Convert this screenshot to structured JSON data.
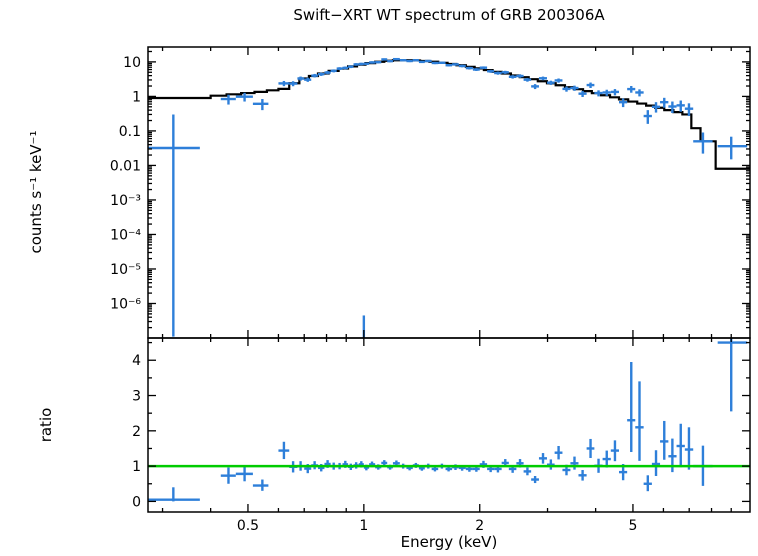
{
  "chart_data": {
    "type": "scatter",
    "title": "Swift−XRT WT spectrum of GRB 200306A",
    "xlabel": "Energy (keV)",
    "xscale": "log",
    "xlim": [
      0.275,
      10.07
    ],
    "legend": "none",
    "grid": "off",
    "colors": {
      "data": "#2e7fd9",
      "model": "#000000",
      "ratio_line": "#00cc00",
      "frame": "#000000"
    },
    "x_ticks": [
      {
        "v": 0.5,
        "label": "0.5"
      },
      {
        "v": 1,
        "label": "1"
      },
      {
        "v": 2,
        "label": "2"
      },
      {
        "v": 5,
        "label": "5"
      }
    ],
    "x_minor": [
      0.3,
      0.4,
      0.6,
      0.7,
      0.8,
      0.9,
      3,
      4,
      6,
      7,
      8,
      9
    ],
    "top": {
      "ylabel": "counts s⁻¹ keV⁻¹",
      "yscale": "log",
      "ylim": [
        1e-07,
        27
      ],
      "yticks": [
        {
          "v": 10,
          "label": "10"
        },
        {
          "v": 1,
          "label": "1"
        },
        {
          "v": 0.1,
          "label": "0.1"
        },
        {
          "v": 0.01,
          "label": "0.01"
        },
        {
          "v": 0.001,
          "label": "10⁻³"
        },
        {
          "v": 0.0001,
          "label": "10⁻⁴"
        },
        {
          "v": 1e-05,
          "label": "10⁻⁵"
        },
        {
          "v": 1e-06,
          "label": "10⁻⁶"
        }
      ],
      "model_step": {
        "edges": [
          0.275,
          0.4,
          0.44,
          0.48,
          0.52,
          0.56,
          0.6,
          0.64,
          0.68,
          0.72,
          0.76,
          0.81,
          0.86,
          0.91,
          0.96,
          1.01,
          1.07,
          1.13,
          1.19,
          1.26,
          1.33,
          1.4,
          1.48,
          1.56,
          1.65,
          1.74,
          1.84,
          1.94,
          2.05,
          2.16,
          2.28,
          2.41,
          2.54,
          2.68,
          2.83,
          2.99,
          3.15,
          3.33,
          3.51,
          3.71,
          3.91,
          4.13,
          4.36,
          4.6,
          4.86,
          5.13,
          5.41,
          5.71,
          6.03,
          6.37,
          6.72,
          7.09,
          7.49,
          8.2,
          10.1
        ],
        "values": [
          0.9,
          1.05,
          1.15,
          1.25,
          1.35,
          1.5,
          1.65,
          2.4,
          3.3,
          3.9,
          4.6,
          5.5,
          6.4,
          7.4,
          8.3,
          9.2,
          10.1,
          10.8,
          11.15,
          11.2,
          11.0,
          10.6,
          10.1,
          9.4,
          8.7,
          8.0,
          7.2,
          6.5,
          5.8,
          5.15,
          4.6,
          4.05,
          3.6,
          3.15,
          2.75,
          2.4,
          2.1,
          1.85,
          1.62,
          1.42,
          1.24,
          1.08,
          0.94,
          0.82,
          0.71,
          0.62,
          0.54,
          0.47,
          0.4,
          0.35,
          0.3,
          0.12,
          0.05,
          0.008
        ]
      },
      "points": [
        [
          0.32,
          0.275,
          0.375,
          0.032,
          1.1e-07,
          0.3
        ],
        [
          0.445,
          0.425,
          0.465,
          0.84,
          0.58,
          1.12
        ],
        [
          0.49,
          0.465,
          0.515,
          0.98,
          0.71,
          1.27
        ],
        [
          0.545,
          0.515,
          0.565,
          0.61,
          0.4,
          0.84
        ],
        [
          0.62,
          0.6,
          0.64,
          2.38,
          1.98,
          2.8
        ],
        [
          0.655,
          0.64,
          0.672,
          2.35,
          1.97,
          2.75
        ],
        [
          0.685,
          0.672,
          0.7,
          3.3,
          2.86,
          3.76
        ],
        [
          0.715,
          0.7,
          0.73,
          3.05,
          2.64,
          3.48
        ],
        [
          0.745,
          0.73,
          0.76,
          4.0,
          3.54,
          4.48
        ],
        [
          0.775,
          0.76,
          0.79,
          4.4,
          3.92,
          4.9
        ],
        [
          0.805,
          0.79,
          0.82,
          4.9,
          4.39,
          5.43
        ],
        [
          0.835,
          0.82,
          0.85,
          5.5,
          4.96,
          6.06
        ],
        [
          0.865,
          0.85,
          0.88,
          6.4,
          5.81,
          7.01
        ],
        [
          0.895,
          0.88,
          0.91,
          6.7,
          6.09,
          7.33
        ],
        [
          0.925,
          0.91,
          0.94,
          7.25,
          6.61,
          7.91
        ],
        [
          0.955,
          0.94,
          0.97,
          8.45,
          7.75,
          9.17
        ],
        [
          0.985,
          0.97,
          1.0,
          8.7,
          7.99,
          9.43
        ],
        [
          1.0,
          0.995,
          1.005,
          1.5e-07,
          1e-08,
          4.5e-07
        ],
        [
          1.015,
          1.0,
          1.032,
          8.85,
          8.13,
          9.59
        ],
        [
          1.05,
          1.032,
          1.07,
          9.65,
          8.9,
          10.4
        ],
        [
          1.09,
          1.07,
          1.11,
          9.8,
          9.05,
          10.6
        ],
        [
          1.13,
          1.11,
          1.15,
          11.8,
          11.0,
          12.6
        ],
        [
          1.17,
          1.15,
          1.19,
          10.5,
          9.75,
          11.3
        ],
        [
          1.215,
          1.19,
          1.24,
          12.0,
          11.2,
          12.8
        ],
        [
          1.265,
          1.24,
          1.29,
          11.2,
          10.4,
          12.0
        ],
        [
          1.315,
          1.29,
          1.34,
          10.6,
          9.85,
          11.4
        ],
        [
          1.365,
          1.34,
          1.39,
          11.2,
          10.4,
          12.0
        ],
        [
          1.415,
          1.39,
          1.44,
          10.0,
          9.3,
          10.7
        ],
        [
          1.47,
          1.44,
          1.5,
          10.6,
          9.85,
          11.4
        ],
        [
          1.53,
          1.5,
          1.56,
          9.3,
          8.6,
          10.0
        ],
        [
          1.595,
          1.56,
          1.63,
          9.4,
          8.7,
          10.1
        ],
        [
          1.66,
          1.63,
          1.695,
          8.0,
          7.35,
          8.65
        ],
        [
          1.73,
          1.695,
          1.765,
          8.45,
          7.8,
          9.1
        ],
        [
          1.8,
          1.765,
          1.84,
          7.6,
          6.95,
          8.25
        ],
        [
          1.88,
          1.84,
          1.92,
          6.6,
          6.0,
          7.2
        ],
        [
          1.96,
          1.92,
          2.0,
          6.0,
          5.45,
          6.55
        ],
        [
          2.045,
          2.0,
          2.09,
          6.8,
          6.2,
          7.4
        ],
        [
          2.135,
          2.09,
          2.18,
          5.35,
          4.82,
          5.88
        ],
        [
          2.23,
          2.18,
          2.28,
          4.75,
          4.25,
          5.25
        ],
        [
          2.33,
          2.28,
          2.38,
          5.0,
          4.48,
          5.52
        ],
        [
          2.435,
          2.38,
          2.49,
          3.7,
          3.28,
          4.12
        ],
        [
          2.545,
          2.49,
          2.6,
          3.9,
          3.46,
          4.34
        ],
        [
          2.66,
          2.6,
          2.72,
          3.05,
          2.67,
          3.43
        ],
        [
          2.785,
          2.72,
          2.85,
          1.95,
          1.63,
          2.27
        ],
        [
          2.92,
          2.85,
          2.99,
          3.35,
          2.95,
          3.75
        ],
        [
          3.06,
          2.99,
          3.13,
          2.5,
          2.15,
          2.85
        ],
        [
          3.205,
          3.13,
          3.28,
          2.9,
          2.5,
          3.3
        ],
        [
          3.36,
          3.28,
          3.44,
          1.65,
          1.37,
          1.93
        ],
        [
          3.525,
          3.44,
          3.61,
          1.75,
          1.45,
          2.05
        ],
        [
          3.7,
          3.61,
          3.79,
          1.2,
          0.96,
          1.44
        ],
        [
          3.88,
          3.79,
          3.97,
          2.13,
          1.75,
          2.52
        ],
        [
          4.07,
          3.97,
          4.17,
          1.25,
          1.0,
          1.5
        ],
        [
          4.275,
          4.17,
          4.38,
          1.3,
          1.04,
          1.56
        ],
        [
          4.49,
          4.38,
          4.6,
          1.35,
          1.07,
          1.63
        ],
        [
          4.715,
          4.6,
          4.83,
          0.68,
          0.49,
          0.87
        ],
        [
          4.95,
          4.83,
          5.07,
          1.63,
          1.28,
          2.0
        ],
        [
          5.2,
          5.07,
          5.33,
          1.3,
          1.0,
          1.6
        ],
        [
          5.465,
          5.33,
          5.6,
          0.27,
          0.16,
          0.4
        ],
        [
          5.74,
          5.6,
          5.88,
          0.5,
          0.34,
          0.68
        ],
        [
          6.03,
          5.88,
          6.18,
          0.68,
          0.47,
          0.91
        ],
        [
          6.33,
          6.18,
          6.49,
          0.51,
          0.33,
          0.71
        ],
        [
          6.655,
          6.49,
          6.82,
          0.55,
          0.36,
          0.76
        ],
        [
          6.99,
          6.82,
          7.17,
          0.44,
          0.27,
          0.63
        ],
        [
          7.6,
          7.17,
          8.05,
          0.05,
          0.022,
          0.09
        ],
        [
          9.0,
          8.3,
          9.9,
          0.036,
          0.015,
          0.068
        ]
      ]
    },
    "bottom": {
      "ylabel": "ratio",
      "yscale": "linear",
      "ylim": [
        -0.3,
        4.63
      ],
      "reference_line": 1,
      "yticks": [
        {
          "v": 0,
          "label": "0"
        },
        {
          "v": 1,
          "label": "1"
        },
        {
          "v": 2,
          "label": "2"
        },
        {
          "v": 3,
          "label": "3"
        },
        {
          "v": 4,
          "label": "4"
        }
      ],
      "yminor": [
        0.5,
        1.5,
        2.5,
        3.5,
        4.5
      ],
      "points": [
        [
          0.32,
          0.275,
          0.375,
          0.05,
          0.0,
          0.4
        ],
        [
          0.445,
          0.425,
          0.465,
          0.73,
          0.5,
          0.96
        ],
        [
          0.49,
          0.465,
          0.515,
          0.78,
          0.57,
          0.99
        ],
        [
          0.545,
          0.515,
          0.565,
          0.45,
          0.3,
          0.62
        ],
        [
          0.62,
          0.6,
          0.64,
          1.44,
          1.2,
          1.69
        ],
        [
          0.655,
          0.64,
          0.672,
          0.98,
          0.82,
          1.14
        ],
        [
          0.685,
          0.672,
          0.7,
          1.0,
          0.87,
          1.14
        ],
        [
          0.715,
          0.7,
          0.73,
          0.93,
          0.8,
          1.06
        ],
        [
          0.745,
          0.73,
          0.76,
          1.02,
          0.91,
          1.14
        ],
        [
          0.775,
          0.76,
          0.79,
          0.95,
          0.85,
          1.06
        ],
        [
          0.805,
          0.79,
          0.82,
          1.06,
          0.95,
          1.17
        ],
        [
          0.835,
          0.82,
          0.85,
          1.0,
          0.9,
          1.1
        ],
        [
          0.865,
          0.85,
          0.88,
          1.0,
          0.91,
          1.09
        ],
        [
          0.895,
          0.88,
          0.91,
          1.05,
          0.95,
          1.15
        ],
        [
          0.925,
          0.91,
          0.94,
          0.98,
          0.89,
          1.07
        ],
        [
          0.955,
          0.94,
          0.97,
          1.02,
          0.93,
          1.11
        ],
        [
          0.985,
          0.97,
          1.0,
          1.05,
          0.96,
          1.14
        ],
        [
          1.015,
          1.0,
          1.032,
          0.96,
          0.88,
          1.04
        ],
        [
          1.05,
          1.032,
          1.07,
          1.05,
          0.97,
          1.13
        ],
        [
          1.09,
          1.07,
          1.11,
          0.97,
          0.9,
          1.05
        ],
        [
          1.13,
          1.11,
          1.15,
          1.09,
          1.01,
          1.17
        ],
        [
          1.17,
          1.15,
          1.19,
          0.97,
          0.9,
          1.04
        ],
        [
          1.215,
          1.19,
          1.24,
          1.08,
          1.0,
          1.16
        ],
        [
          1.265,
          1.24,
          1.29,
          1.0,
          0.93,
          1.07
        ],
        [
          1.315,
          1.29,
          1.34,
          0.95,
          0.88,
          1.02
        ],
        [
          1.365,
          1.34,
          1.39,
          1.02,
          0.95,
          1.09
        ],
        [
          1.415,
          1.39,
          1.44,
          0.94,
          0.87,
          1.01
        ],
        [
          1.47,
          1.44,
          1.5,
          1.0,
          0.93,
          1.07
        ],
        [
          1.53,
          1.5,
          1.56,
          0.92,
          0.85,
          0.99
        ],
        [
          1.595,
          1.56,
          1.63,
          1.0,
          0.93,
          1.07
        ],
        [
          1.66,
          1.63,
          1.695,
          0.92,
          0.85,
          0.99
        ],
        [
          1.73,
          1.695,
          1.765,
          0.97,
          0.89,
          1.05
        ],
        [
          1.8,
          1.765,
          1.84,
          0.95,
          0.87,
          1.03
        ],
        [
          1.88,
          1.84,
          1.92,
          0.92,
          0.84,
          1.0
        ],
        [
          1.96,
          1.92,
          2.0,
          0.92,
          0.84,
          1.01
        ],
        [
          2.045,
          2.0,
          2.09,
          1.05,
          0.95,
          1.15
        ],
        [
          2.135,
          2.09,
          2.18,
          0.92,
          0.83,
          1.01
        ],
        [
          2.23,
          2.18,
          2.28,
          0.92,
          0.82,
          1.02
        ],
        [
          2.33,
          2.28,
          2.38,
          1.09,
          0.98,
          1.2
        ],
        [
          2.435,
          2.38,
          2.49,
          0.92,
          0.81,
          1.03
        ],
        [
          2.545,
          2.49,
          2.6,
          1.08,
          0.96,
          1.2
        ],
        [
          2.66,
          2.6,
          2.72,
          0.85,
          0.74,
          0.96
        ],
        [
          2.785,
          2.72,
          2.85,
          0.62,
          0.52,
          0.72
        ],
        [
          2.92,
          2.85,
          2.99,
          1.22,
          1.07,
          1.37
        ],
        [
          3.06,
          2.99,
          3.13,
          1.04,
          0.9,
          1.19
        ],
        [
          3.205,
          3.13,
          3.28,
          1.38,
          1.19,
          1.57
        ],
        [
          3.36,
          3.28,
          3.44,
          0.89,
          0.74,
          1.04
        ],
        [
          3.525,
          3.44,
          3.61,
          1.08,
          0.9,
          1.27
        ],
        [
          3.7,
          3.61,
          3.79,
          0.74,
          0.59,
          0.89
        ],
        [
          3.88,
          3.79,
          3.97,
          1.5,
          1.23,
          1.77
        ],
        [
          4.07,
          3.97,
          4.17,
          1.01,
          0.81,
          1.21
        ],
        [
          4.275,
          4.17,
          4.38,
          1.2,
          0.96,
          1.44
        ],
        [
          4.49,
          4.38,
          4.6,
          1.44,
          1.14,
          1.73
        ],
        [
          4.715,
          4.6,
          4.83,
          0.83,
          0.6,
          1.06
        ],
        [
          4.95,
          4.83,
          5.07,
          2.3,
          1.4,
          3.95
        ],
        [
          5.2,
          5.07,
          5.33,
          2.1,
          1.15,
          3.4
        ],
        [
          5.465,
          5.33,
          5.6,
          0.5,
          0.29,
          0.74
        ],
        [
          5.74,
          5.6,
          5.88,
          1.06,
          0.72,
          1.45
        ],
        [
          6.03,
          5.88,
          6.18,
          1.7,
          1.18,
          2.28
        ],
        [
          6.33,
          6.18,
          6.49,
          1.28,
          0.83,
          1.78
        ],
        [
          6.655,
          6.49,
          6.82,
          1.57,
          0.97,
          2.2
        ],
        [
          6.99,
          6.82,
          7.17,
          1.47,
          0.9,
          2.1
        ],
        [
          7.6,
          7.17,
          8.05,
          1.0,
          0.44,
          1.58
        ],
        [
          9.0,
          8.3,
          9.9,
          4.5,
          2.55,
          4.63
        ]
      ]
    }
  }
}
